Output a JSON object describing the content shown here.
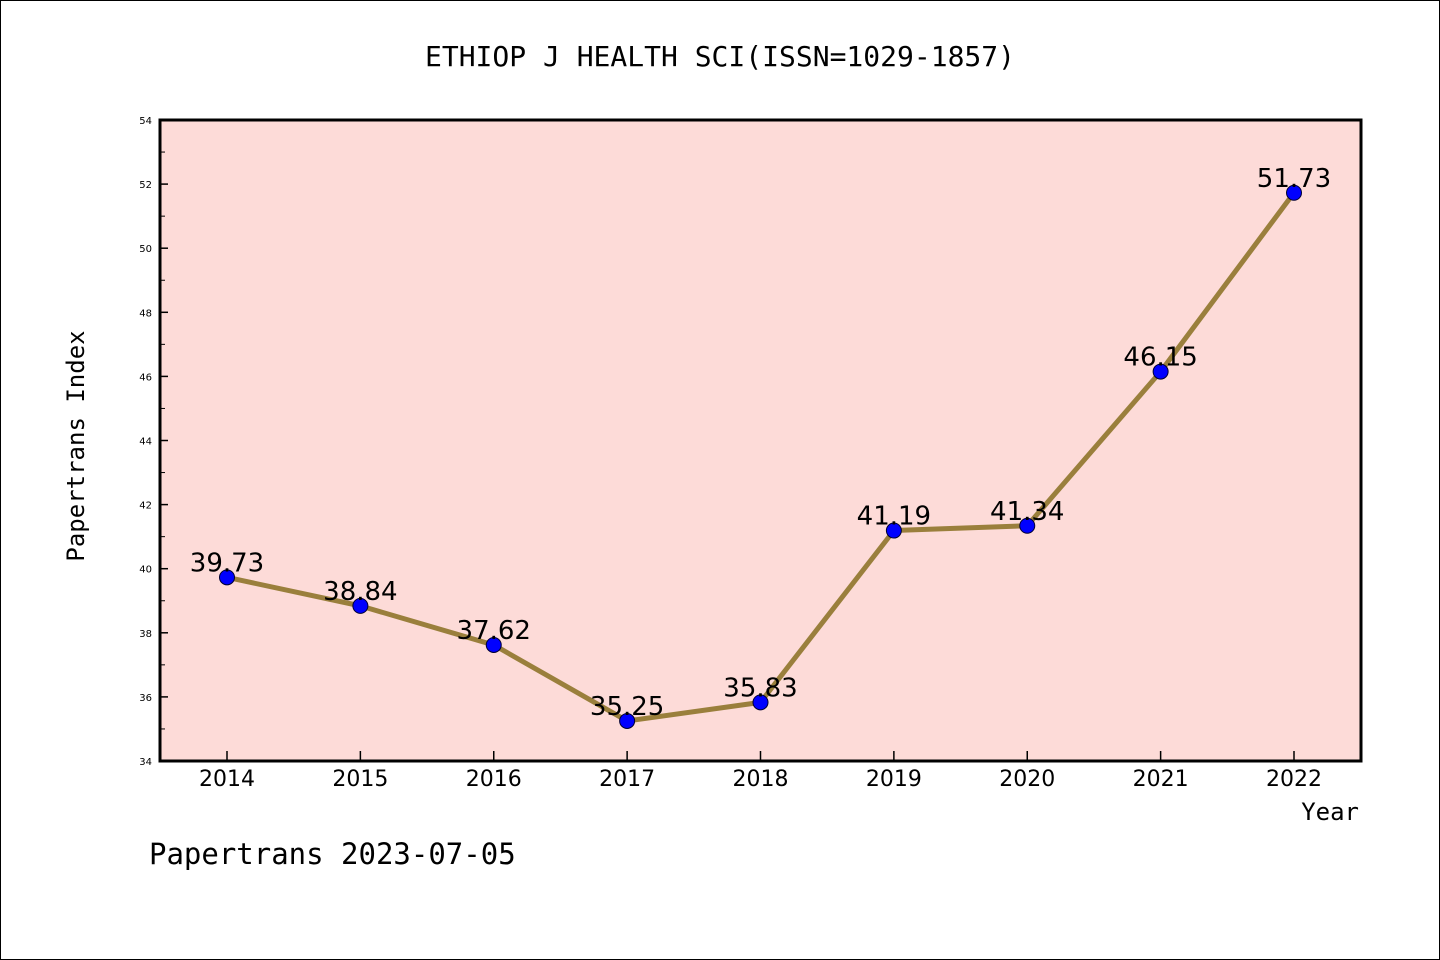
{
  "chart_data": {
    "type": "line",
    "title": "ETHIOP J HEALTH SCI(ISSN=1029-1857)",
    "xlabel": "Year",
    "ylabel": "Papertrans Index",
    "categories": [
      "2014",
      "2015",
      "2016",
      "2017",
      "2018",
      "2019",
      "2020",
      "2021",
      "2022"
    ],
    "values": [
      39.73,
      38.84,
      37.62,
      35.25,
      35.83,
      41.19,
      41.34,
      46.15,
      51.73
    ],
    "data_labels": [
      "39.73",
      "38.84",
      "37.62",
      "35.25",
      "35.83",
      "41.19",
      "41.34",
      "46.15",
      "51.73"
    ],
    "ylim": [
      34,
      54
    ],
    "yticks": [
      "34",
      "36",
      "38",
      "40",
      "42",
      "44",
      "46",
      "48",
      "50",
      "52",
      "54"
    ],
    "grid": false,
    "legend": "none",
    "colors": {
      "plot_background": "#fddbd8",
      "line": "#9a7f3c",
      "marker": "#0000ff"
    }
  },
  "footer": {
    "watermark": "Papertrans 2023-07-05"
  }
}
